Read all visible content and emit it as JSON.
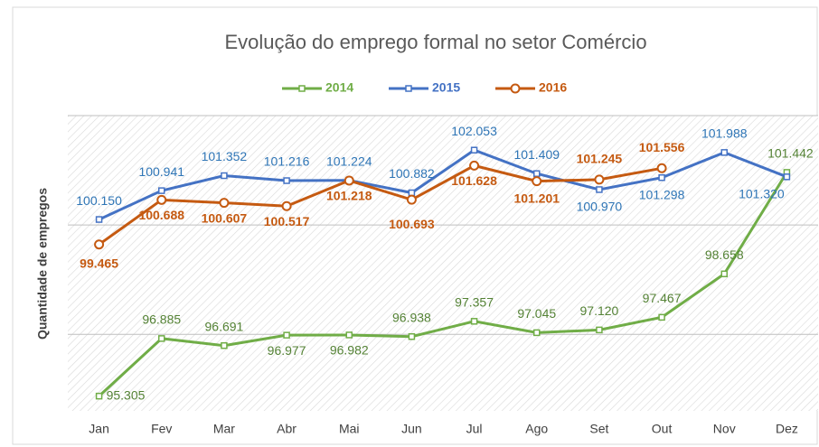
{
  "chart_data": {
    "type": "line",
    "title": "Evolução do emprego formal no setor Comércio",
    "y_label": "Quantidade de empregos",
    "categories": [
      "Jan",
      "Fev",
      "Mar",
      "Abr",
      "Mai",
      "Jun",
      "Jul",
      "Ago",
      "Set",
      "Out",
      "Nov",
      "Dez"
    ],
    "series": [
      {
        "name": "2014",
        "color": "#70ad47",
        "label_color": "#548235",
        "values": [
          95305,
          96885,
          96691,
          96977,
          96982,
          96938,
          97357,
          97045,
          97120,
          97467,
          98658,
          101442
        ],
        "value_labels": [
          "95.305",
          "96.885",
          "96.691",
          "96.977",
          "96.982",
          "96.938",
          "97.357",
          "97.045",
          "97.120",
          "97.467",
          "98.658",
          "101.442"
        ]
      },
      {
        "name": "2015",
        "color": "#4472c4",
        "label_color": "#2e75b6",
        "values": [
          100150,
          100941,
          101352,
          101216,
          101224,
          100882,
          102053,
          101409,
          100970,
          101298,
          101988,
          101320
        ],
        "value_labels": [
          "100.150",
          "100.941",
          "101.352",
          "101.216",
          "101.224",
          "100.882",
          "102.053",
          "101.409",
          "100.970",
          "101.298",
          "101.988",
          "101.320"
        ]
      },
      {
        "name": "2016",
        "color": "#c55a11",
        "label_color": "#c55a11",
        "values": [
          99465,
          100688,
          100607,
          100517,
          101218,
          100693,
          101628,
          101201,
          101245,
          101556,
          null,
          null
        ],
        "value_labels": [
          "99.465",
          "100.688",
          "100.607",
          "100.517",
          "101.218",
          "100.693",
          "101.628",
          "101.201",
          "101.245",
          "101.556",
          null,
          null
        ]
      }
    ],
    "ylim": [
      94900,
      103000
    ],
    "yticks": [
      97000,
      100000,
      103000
    ],
    "grid": true,
    "legend": "top"
  }
}
